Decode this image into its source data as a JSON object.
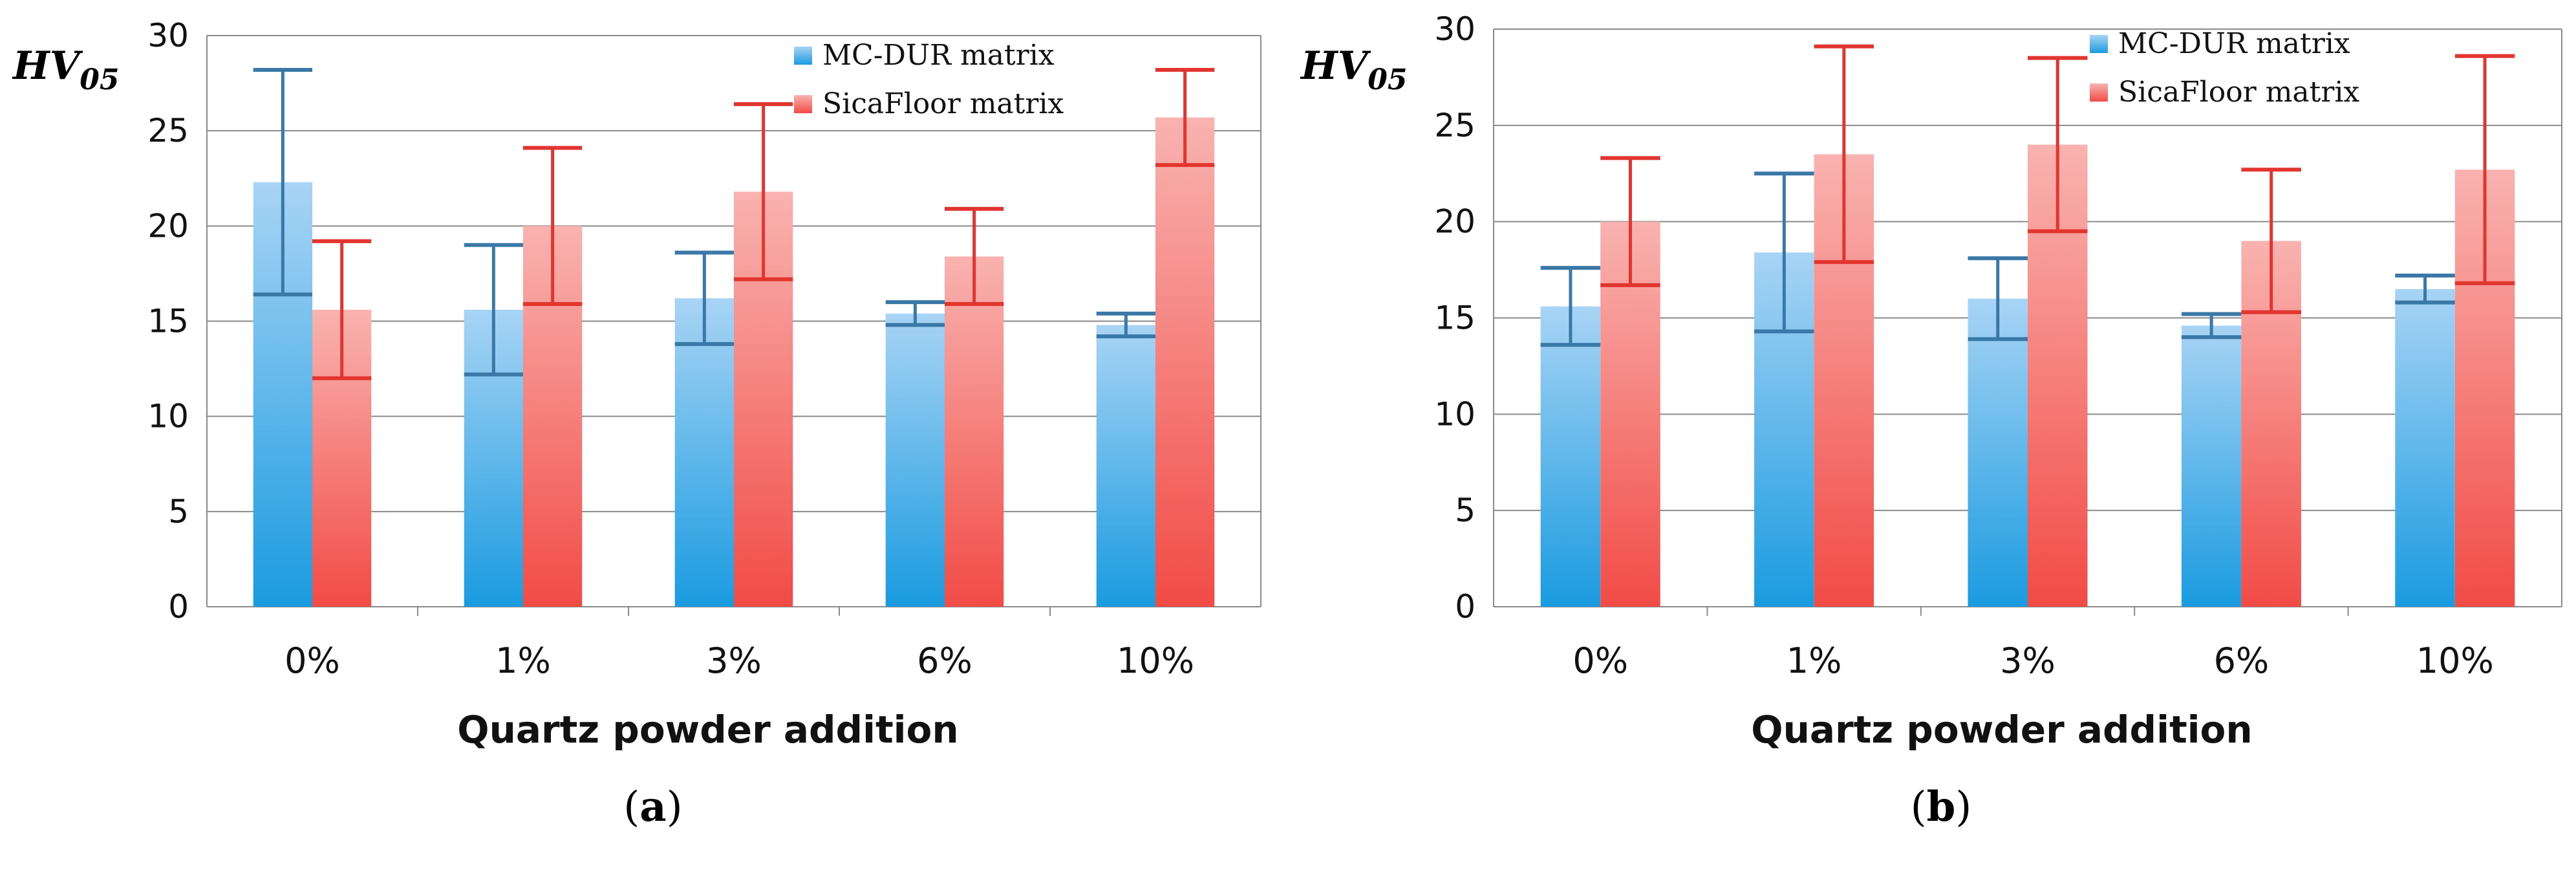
{
  "captions": {
    "a": "(a)",
    "b": "(b)",
    "a_letter": "a",
    "b_letter": "b"
  },
  "colors": {
    "blue": "#1a9be0",
    "blue_light": "#a8d4f5",
    "blue_err": "#3a78a8",
    "red": "#f24b46",
    "red_light": "#f9b3b0",
    "red_err": "#e23530"
  },
  "chart_data": [
    {
      "type": "bar",
      "panel": "a",
      "title": "",
      "ylabel": "HV05",
      "ylabel_main": "HV",
      "ylabel_sub": "05",
      "xlabel": "Quartz powder addition",
      "categories": [
        "0%",
        "1%",
        "3%",
        "6%",
        "10%"
      ],
      "ylim": [
        0,
        30
      ],
      "yticks": [
        0,
        5,
        10,
        15,
        20,
        25,
        30
      ],
      "legend_position": "top-right",
      "series": [
        {
          "name": "MC-DUR matrix",
          "color": "blue",
          "values": [
            22.3,
            15.6,
            16.2,
            15.4,
            14.8
          ],
          "errors": [
            5.9,
            3.4,
            2.4,
            0.6,
            0.6
          ]
        },
        {
          "name": "SicaFloor matrix",
          "color": "red",
          "values": [
            15.6,
            20.0,
            21.8,
            18.4,
            25.7
          ],
          "errors": [
            3.6,
            4.1,
            4.6,
            2.5,
            2.5
          ]
        }
      ]
    },
    {
      "type": "bar",
      "panel": "b",
      "title": "",
      "ylabel": "HV05",
      "ylabel_main": "HV",
      "ylabel_sub": "05",
      "xlabel": "Quartz powder addition",
      "categories": [
        "0%",
        "1%",
        "3%",
        "6%",
        "10%"
      ],
      "ylim": [
        0,
        30
      ],
      "yticks": [
        0,
        5,
        10,
        15,
        20,
        25,
        30
      ],
      "legend_position": "top-right",
      "series": [
        {
          "name": "MC-DUR matrix",
          "color": "blue",
          "values": [
            15.6,
            18.4,
            16.0,
            14.6,
            16.5
          ],
          "errors": [
            2.0,
            4.1,
            2.1,
            0.6,
            0.7
          ]
        },
        {
          "name": "SicaFloor matrix",
          "color": "red",
          "values": [
            20.0,
            23.5,
            24.0,
            19.0,
            22.7
          ],
          "errors": [
            3.3,
            5.6,
            4.5,
            3.7,
            5.9
          ]
        }
      ]
    }
  ]
}
